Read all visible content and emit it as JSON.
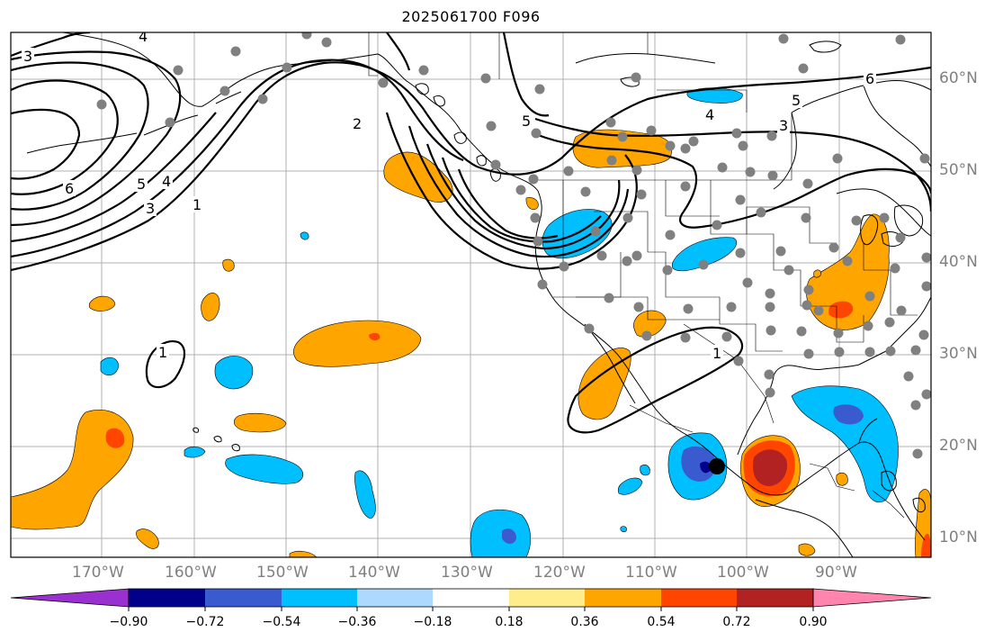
{
  "title": "2025061700 F096",
  "longitude_labels": [
    "170°W",
    "160°W",
    "150°W",
    "140°W",
    "130°W",
    "120°W",
    "110°W",
    "100°W",
    "90°W"
  ],
  "latitude_labels": [
    "60°N",
    "50°N",
    "40°N",
    "30°N",
    "20°N",
    "10°N"
  ],
  "contour_labels": [
    "3",
    "4",
    "6",
    "5",
    "4",
    "3",
    "1",
    "2",
    "5",
    "5",
    "6",
    "4",
    "3",
    "1",
    "1"
  ],
  "colorbar": {
    "tick_labels": [
      "−0.90",
      "−0.72",
      "−0.54",
      "−0.36",
      "−0.18",
      "0.18",
      "0.36",
      "0.54",
      "0.72",
      "0.90"
    ],
    "colors": [
      "#9b30d0",
      "#00008b",
      "#3a5bd0",
      "#00bfff",
      "#add8ff",
      "#ffffff",
      "#ffec8b",
      "#ffa500",
      "#ff4500",
      "#b22222",
      "#ff85ae"
    ]
  },
  "colors": {
    "pos_weak": "#ffa500",
    "pos_mid": "#ff4500",
    "pos_strong": "#b22222",
    "neg_weak": "#00bfff",
    "neg_mid": "#3a5bd0",
    "neg_strong": "#00008b",
    "station": "#808080",
    "grid": "#b0b0b0",
    "axis_label": "#808080"
  }
}
